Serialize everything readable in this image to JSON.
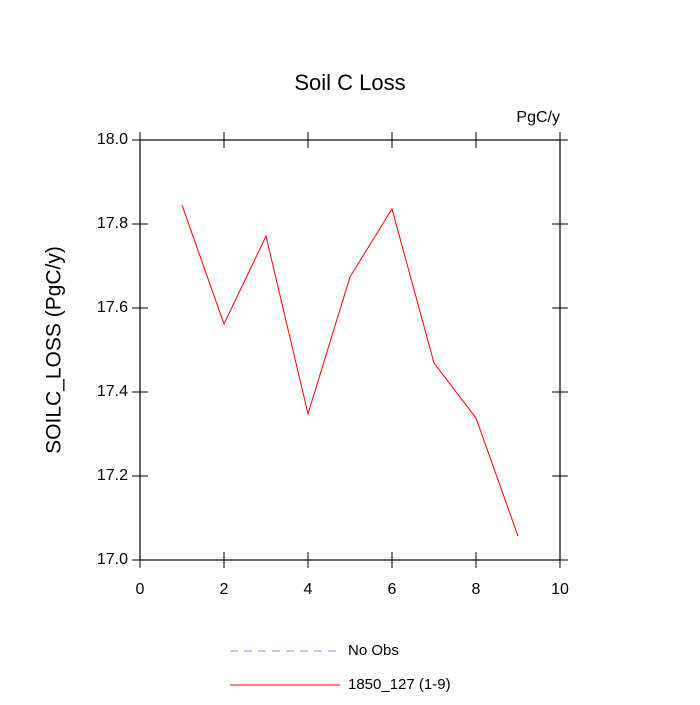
{
  "chart_data": {
    "type": "line",
    "title": "Soil C Loss",
    "units": "PgC/y",
    "y_label": "SOILC_LOSS  (PgC/y)",
    "x": [
      1,
      2,
      3,
      4,
      5,
      6,
      7,
      8,
      9
    ],
    "series": [
      {
        "name": "No Obs",
        "color": "#8c8cff",
        "dashed": true,
        "values": [
          null,
          null,
          null,
          null,
          null,
          null,
          null,
          null,
          null
        ]
      },
      {
        "name": "1850_127 (1-9)",
        "color": "#ff0000",
        "dashed": false,
        "values": [
          17.845,
          17.562,
          17.771,
          17.348,
          17.674,
          17.836,
          17.469,
          17.338,
          17.057
        ]
      }
    ],
    "xlim": [
      0,
      10
    ],
    "xticks": [
      0,
      2,
      4,
      6,
      8,
      10
    ],
    "ylim": [
      17.0,
      18.0
    ],
    "yticks": [
      {
        "value": 17.0,
        "label": "17.0"
      },
      {
        "value": 17.2,
        "label": "17.2"
      },
      {
        "value": 17.4,
        "label": "17.4"
      },
      {
        "value": 17.6,
        "label": "17.6"
      },
      {
        "value": 17.8,
        "label": "17.8"
      },
      {
        "value": 18.0,
        "label": "18.0"
      }
    ],
    "grid": false
  }
}
